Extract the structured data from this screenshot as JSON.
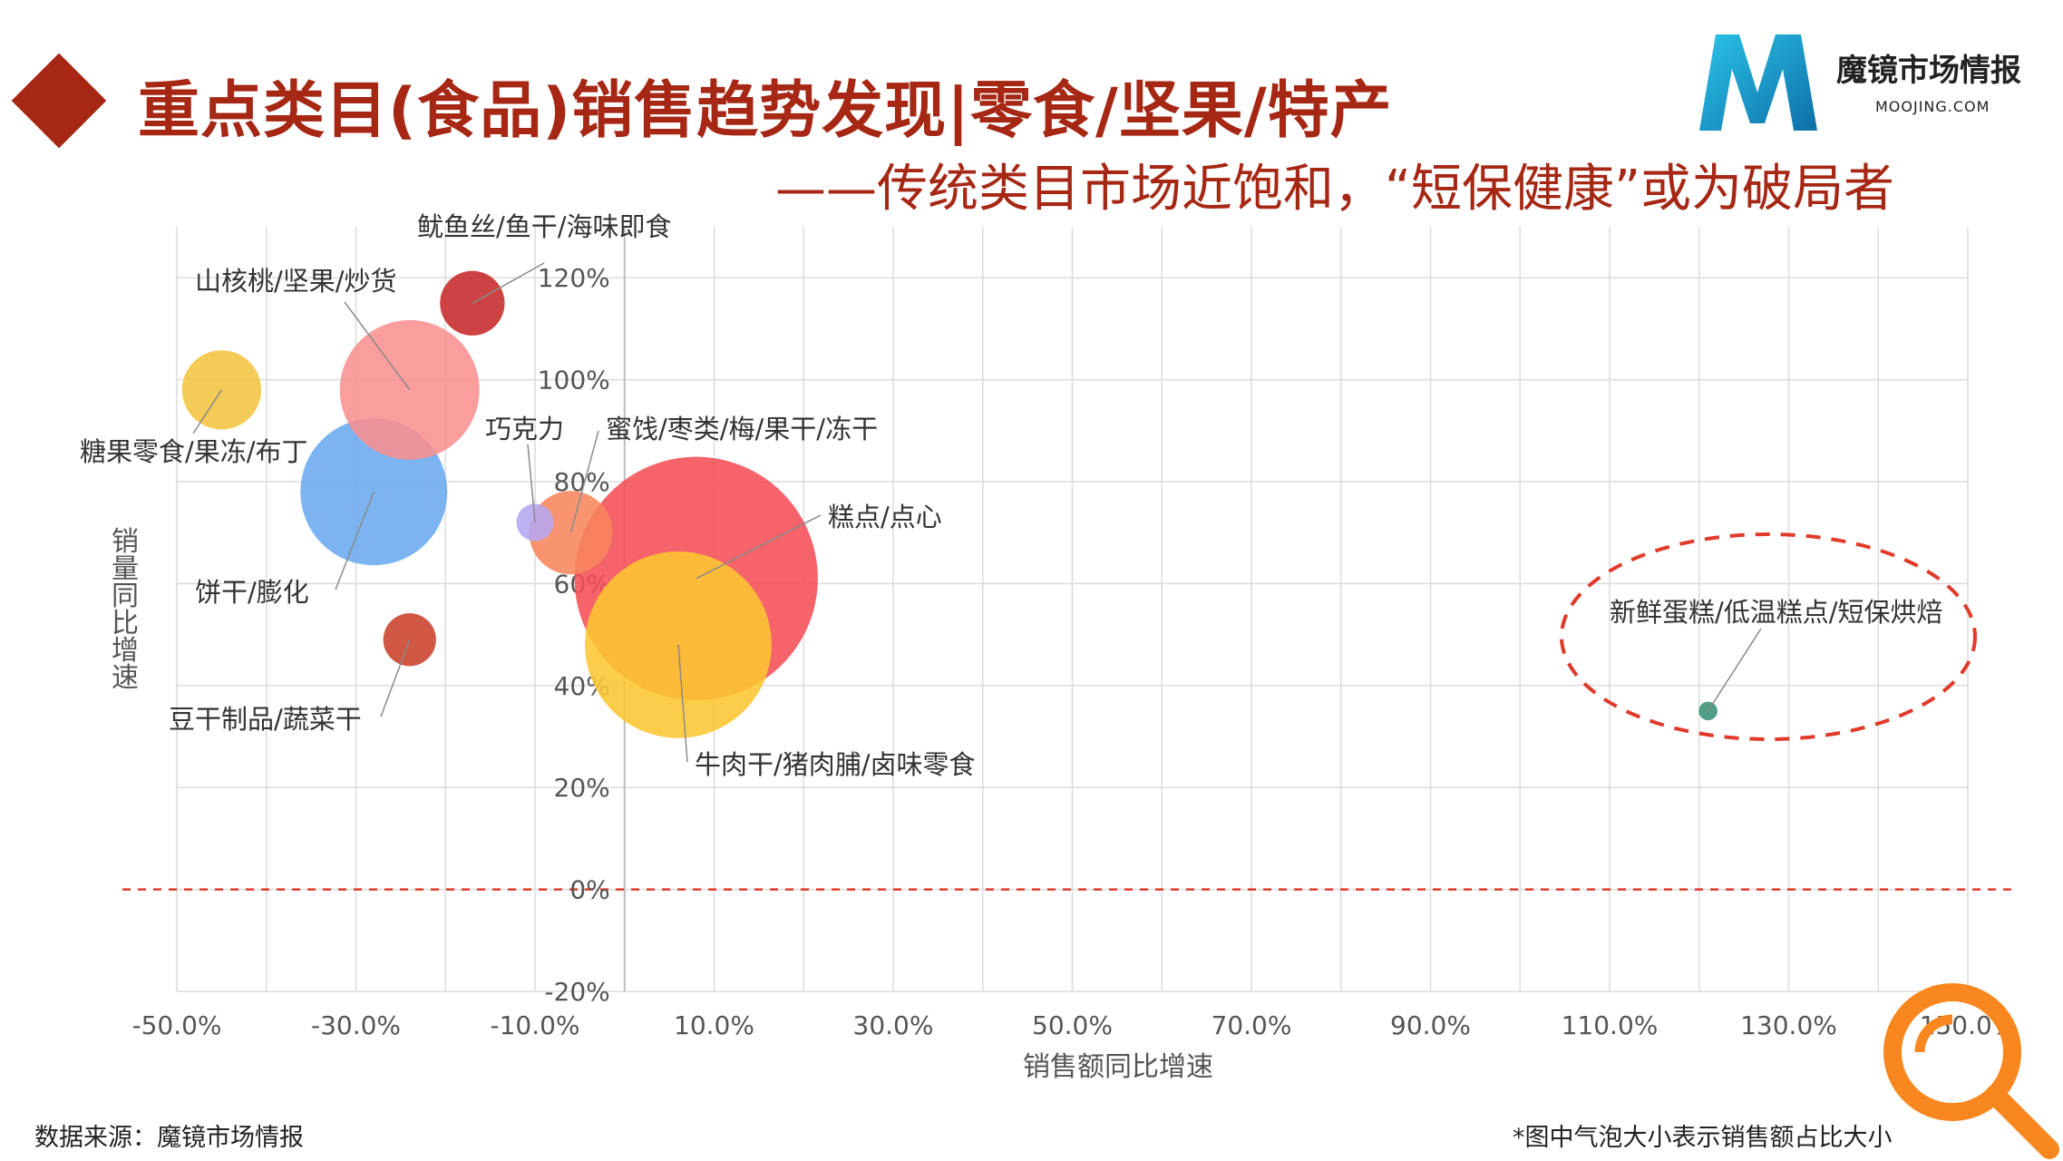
{
  "header": {
    "title": "重点类目(食品)销售趋势发现|零食/坚果/特产",
    "subtitle": "——传统类目市场近饱和，“短保健康”或为破局者"
  },
  "brand": {
    "name": "魔镜市场情报",
    "url": "MOOJING.COM",
    "accent": "#1a9fcf"
  },
  "footer": {
    "source": "数据来源：魔镜市场情报",
    "note": "*图中气泡大小表示销售额占比大小"
  },
  "colors": {
    "title": "#a52714",
    "dashed": "#e03a2a",
    "magnifier": "#f7871e"
  },
  "chart_data": {
    "type": "scatter",
    "subtype": "bubble",
    "xlabel": "销售额同比增速",
    "ylabel": "销量同比增速",
    "xlim": [
      -50,
      150
    ],
    "ylim": [
      -20,
      130
    ],
    "x_ticks": [
      "-50.0%",
      "-30.0%",
      "-10.0%",
      "10.0%",
      "30.0%",
      "50.0%",
      "70.0%",
      "90.0%",
      "110.0%",
      "130.0%",
      "150.0%"
    ],
    "y_ticks": [
      "-20%",
      "0%",
      "20%",
      "40%",
      "60%",
      "80%",
      "100%",
      "120%"
    ],
    "grid": true,
    "reference_line_y": 0,
    "points": [
      {
        "label": "鱿鱼丝/鱼干/海味即食",
        "x": -17,
        "y": 115,
        "size": 0.6,
        "color": "#c62828"
      },
      {
        "label": "山核桃/坚果/炒货",
        "x": -24,
        "y": 98,
        "size": 2.8,
        "color": "#f98f8f"
      },
      {
        "label": "糖果零食/果冻/布丁",
        "x": -45,
        "y": 98,
        "size": 0.9,
        "color": "#f3c440"
      },
      {
        "label": "饼干/膨化",
        "x": -28,
        "y": 78,
        "size": 3.1,
        "color": "#6aaaf0"
      },
      {
        "label": "巧克力",
        "x": -10,
        "y": 72,
        "size": 0.2,
        "color": "#b5a7f0"
      },
      {
        "label": "蜜饯/枣类/梅/果干/冻干",
        "x": -6,
        "y": 70,
        "size": 1.0,
        "color": "#f7855c"
      },
      {
        "label": "糕点/点心",
        "x": 8,
        "y": 61,
        "size": 8.5,
        "color": "#f44f57"
      },
      {
        "label": "牛肉干/猪肉脯/卤味零食",
        "x": 6,
        "y": 48,
        "size": 5.0,
        "color": "#fcc631"
      },
      {
        "label": "豆干制品/蔬菜干",
        "x": -24,
        "y": 49,
        "size": 0.4,
        "color": "#c8402a"
      },
      {
        "label": "新鲜蛋糕/低温糕点/短保烘焙",
        "x": 121,
        "y": 35,
        "size": 0.05,
        "color": "#3a9078"
      }
    ]
  }
}
